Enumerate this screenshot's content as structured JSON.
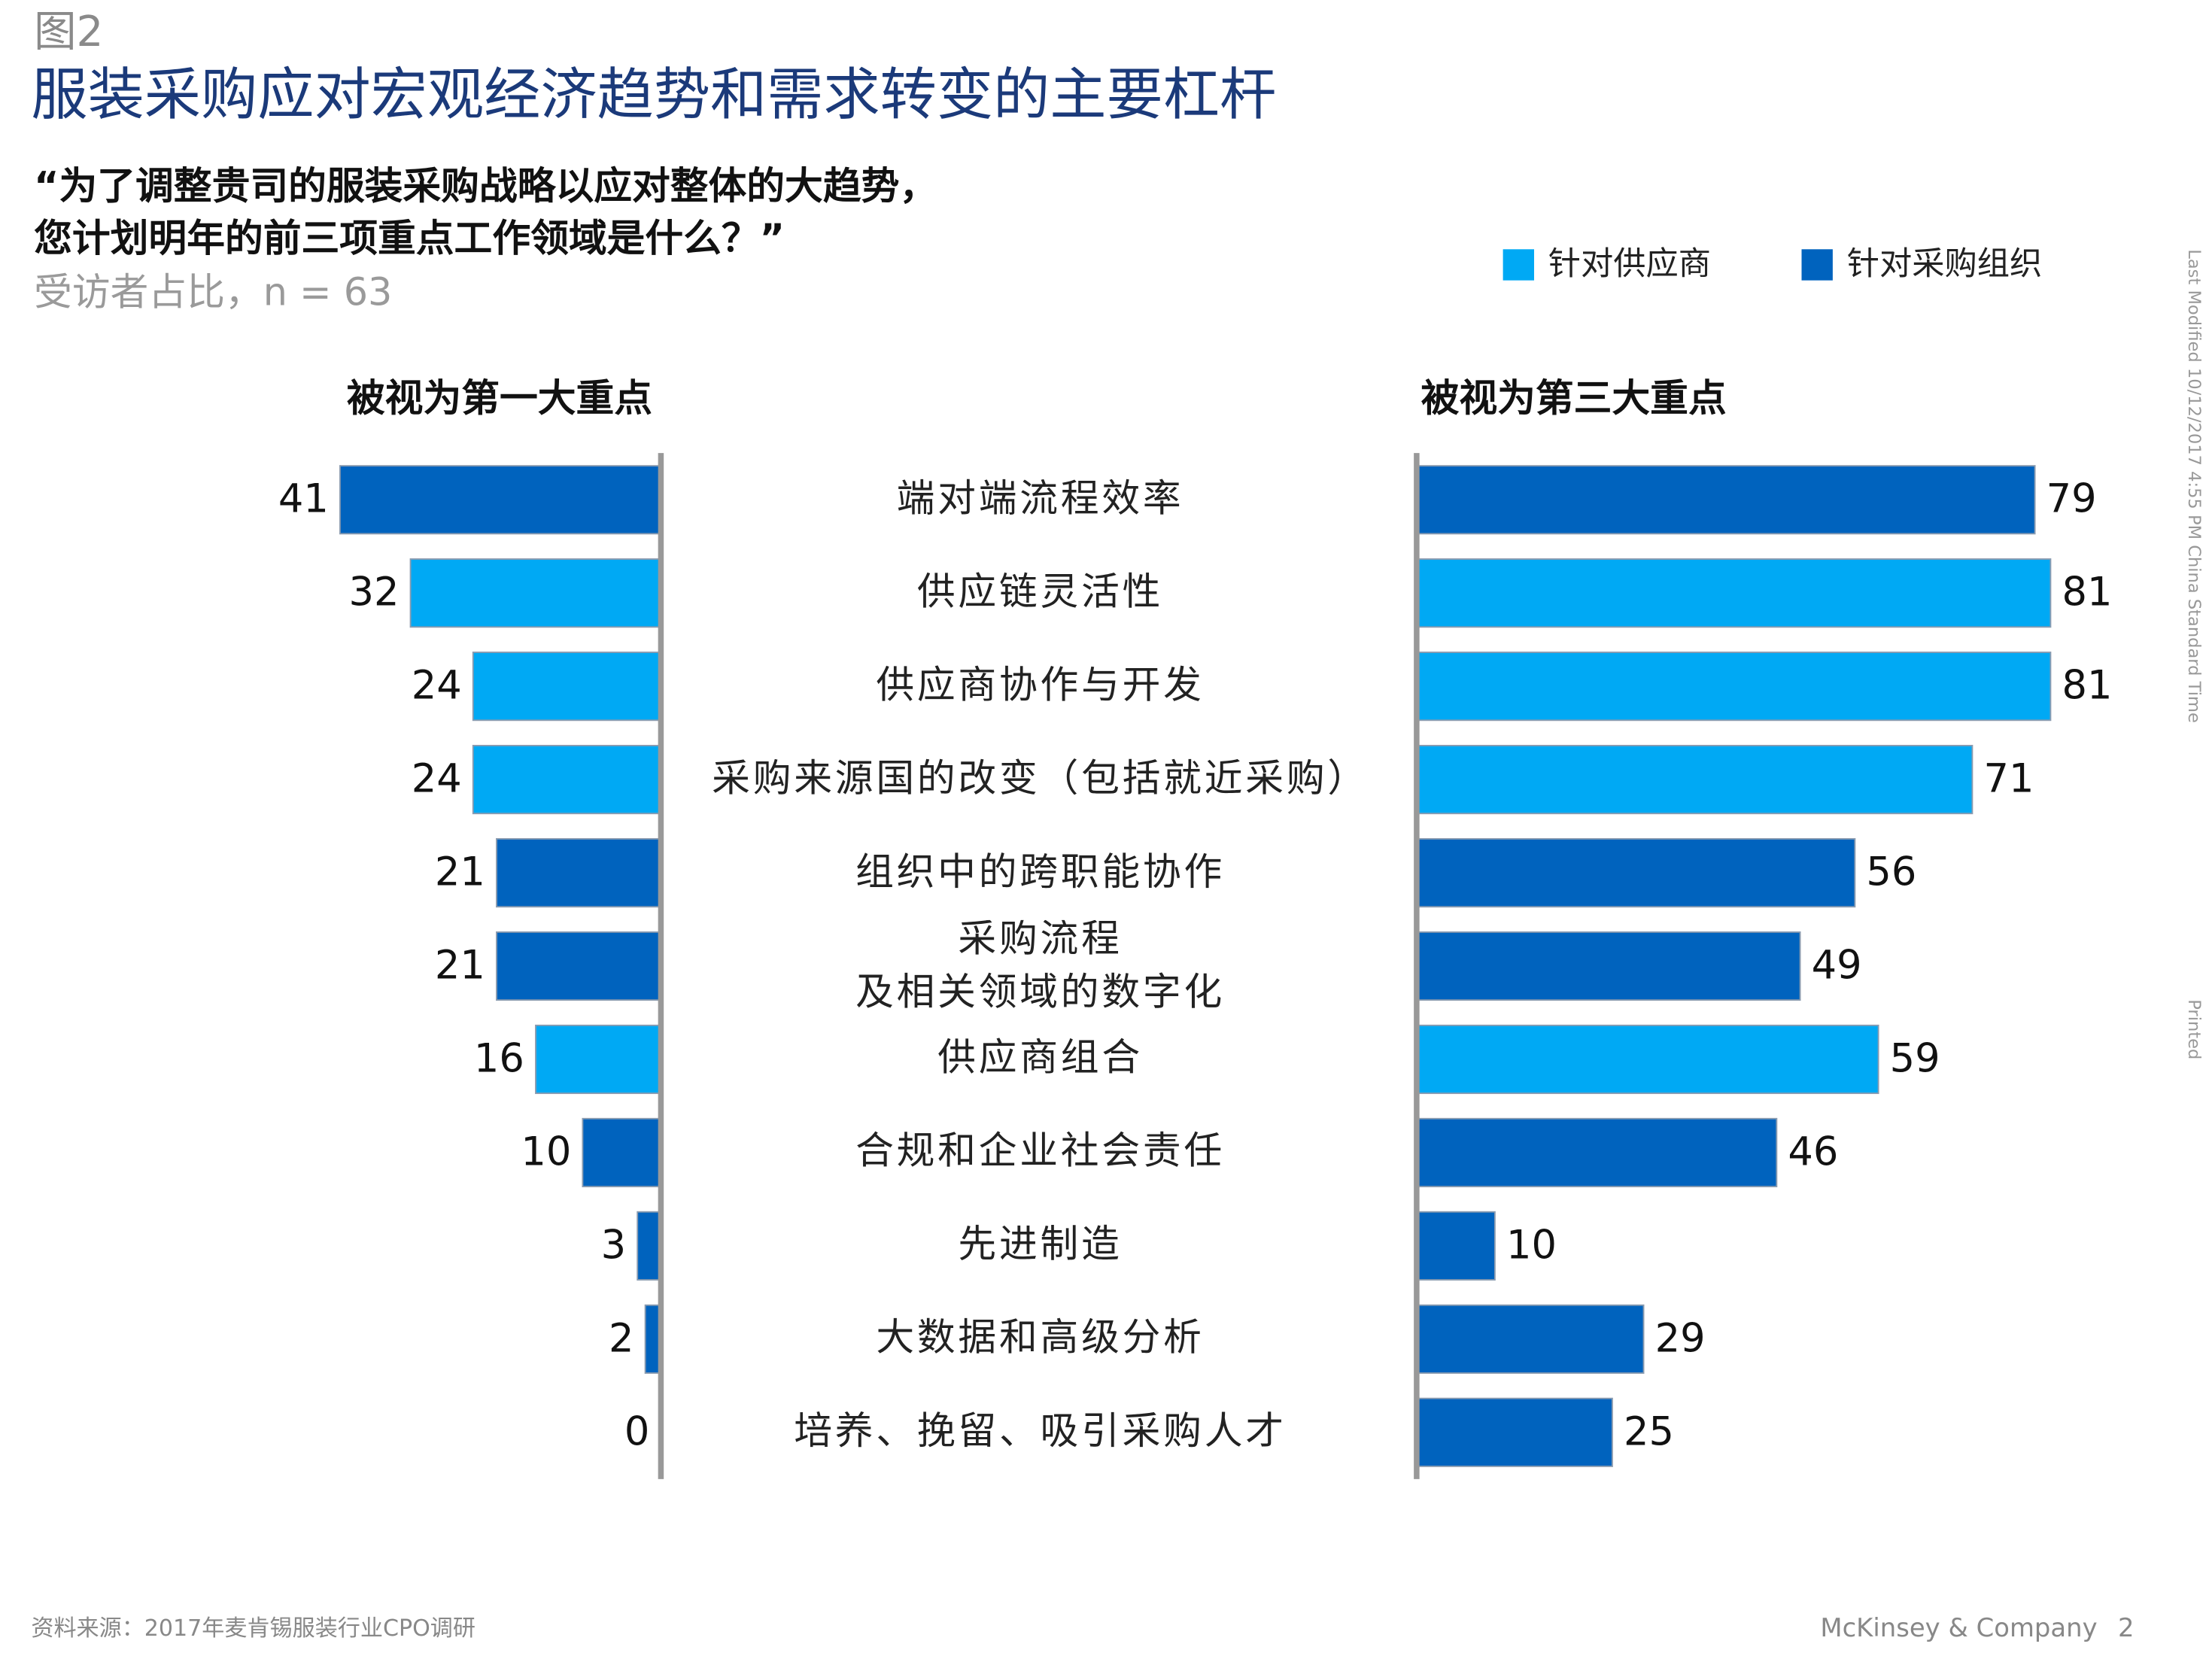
{
  "header": {
    "figure": "图2",
    "title": "服装采购应对宏观经济趋势和需求转变的主要杠杆",
    "question": [
      "“为了调整贵司的服装采购战略以应对整体的大趋势，",
      "您计划明年的前三项重点工作领域是什么？”"
    ],
    "note": "受访者占比，n = 63"
  },
  "chart_data": {
    "type": "bar",
    "orientation": "horizontal",
    "categories": [
      "端对端流程效率",
      "供应链灵活性",
      "供应商协作与开发",
      "采购来源国的改变（包括就近采购）",
      "组织中的跨职能协作",
      "采购流程\n及相关领域的数字化",
      "供应商组合",
      "合规和企业社会责任",
      "先进制造",
      "大数据和高级分析",
      "培养、挽留、吸引采购人才"
    ],
    "colors": [
      "#0063be",
      "#00a9f4",
      "#00a9f4",
      "#00a9f4",
      "#0063be",
      "#0063be",
      "#00a9f4",
      "#0063be",
      "#0063be",
      "#0063be",
      "#0063be"
    ],
    "legend": [
      {
        "name": "针对供应商",
        "color": "#00a9f4"
      },
      {
        "name": "针对采购组织",
        "color": "#0063be"
      }
    ],
    "xlim": [
      0,
      100
    ],
    "panels": [
      {
        "title": "被视为第一大重点",
        "values": [
          41,
          32,
          24,
          24,
          21,
          21,
          16,
          10,
          3,
          2,
          0
        ]
      },
      {
        "title": "被视为第三大重点",
        "values": [
          79,
          81,
          81,
          71,
          56,
          49,
          59,
          46,
          10,
          29,
          25
        ]
      }
    ]
  },
  "footer": {
    "source": "资料来源：2017年麦肯锡服装行业CPO调研",
    "company": "McKinsey & Company",
    "page": "2",
    "modified": "Last Modified 10/12/2017 4:55 PM China Standard Time",
    "printed": "Printed"
  }
}
